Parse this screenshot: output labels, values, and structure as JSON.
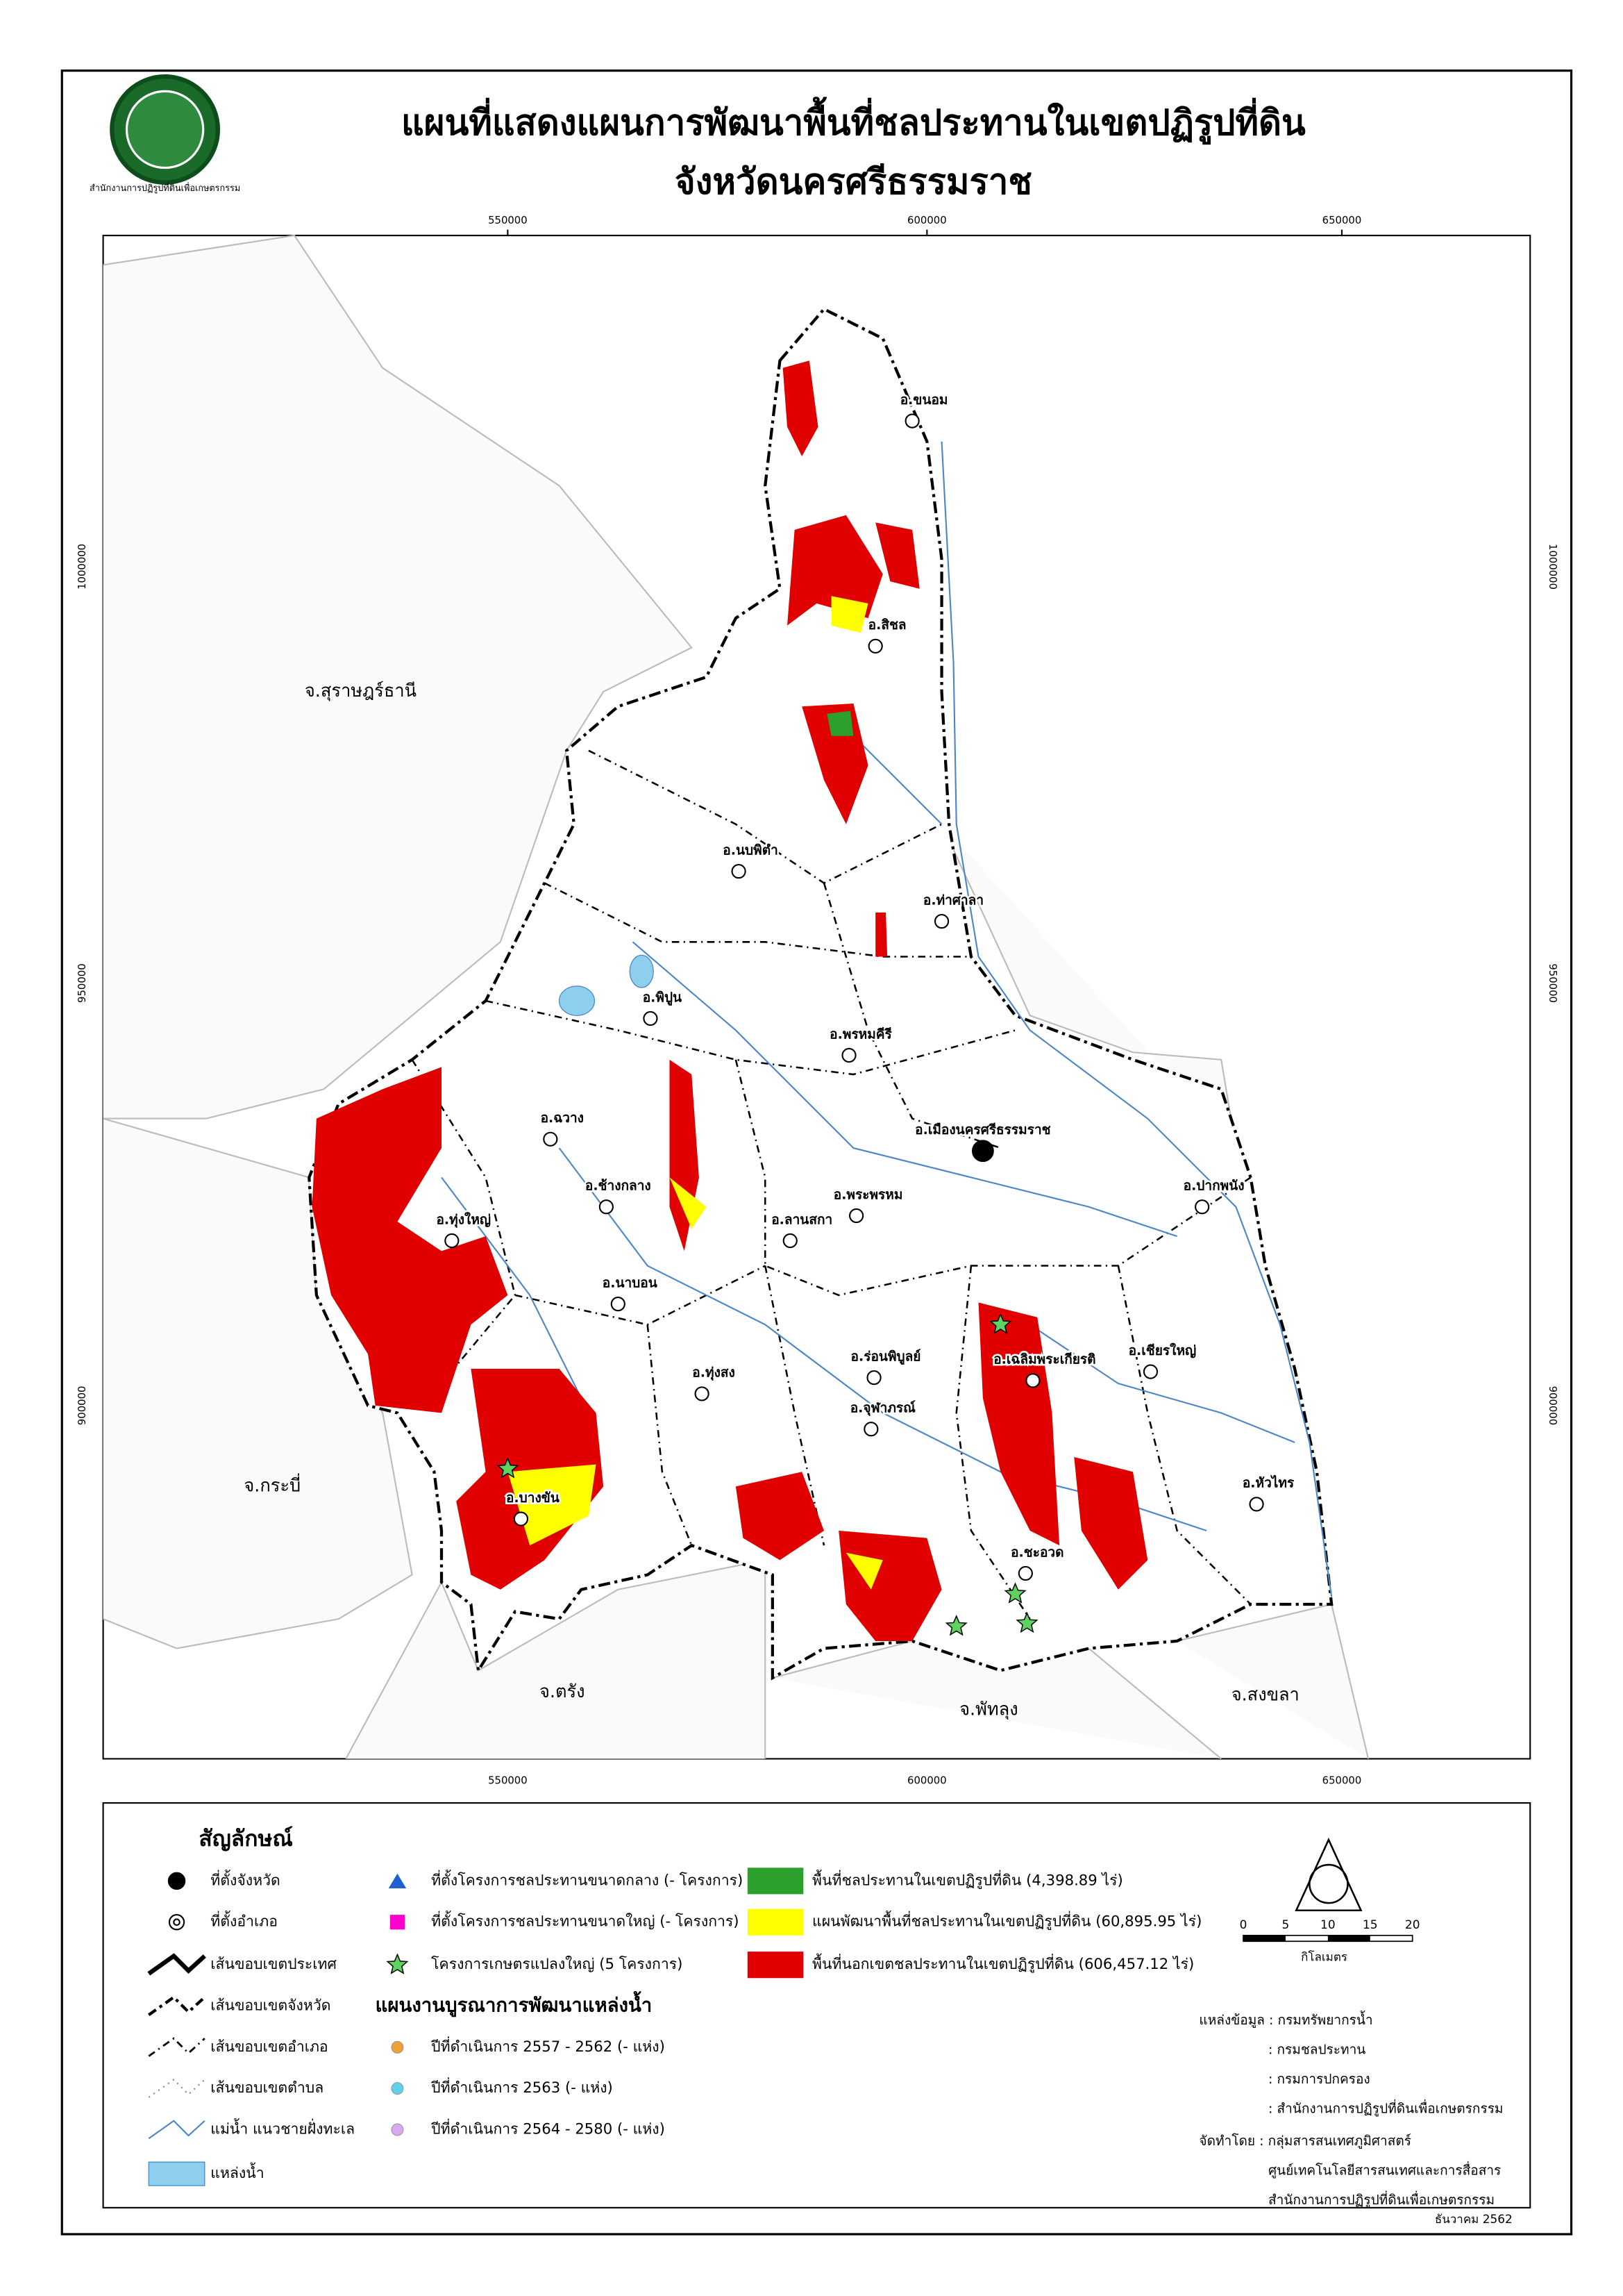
{
  "header": {
    "title": "แผนที่แสดงแผนการพัฒนาพื้นที่ชลประทานในเขตปฏิรูปที่ดิน",
    "subtitle": "จังหวัดนครศรีธรรมราช",
    "logo_text": "สำนักงานการปฏิรูปที่ดินเพื่อเกษตรกรรม"
  },
  "map": {
    "x_coordinates": [
      550000,
      600000,
      650000
    ],
    "y_coordinates": [
      1000000,
      950000,
      900000
    ],
    "provinces": [
      "จ.สุราษฎร์ธานี",
      "จ.กระบี่",
      "จ.ตรัง",
      "จ.พัทลุง",
      "จ.สงขลา"
    ],
    "districts": [
      "อ.ขนอม",
      "อ.สิชล",
      "อ.นบพิตำ",
      "อ.ท่าศาลา",
      "อ.พิปูน",
      "อ.พรหมคีรี",
      "อ.เมืองนครศรีธรรมราช",
      "อ.ฉวาง",
      "อ.ปากพนัง",
      "อ.ช้างกลาง",
      "อ.พระพรหม",
      "อ.ลานสกา",
      "อ.ทุ่งใหญ่",
      "อ.นาบอน",
      "อ.ร่อนพิบูลย์",
      "อ.เฉลิมพระเกียรติ",
      "อ.เชียรใหญ่",
      "อ.ทุ่งสง",
      "อ.จุฬาภรณ์",
      "อ.หัวไทร",
      "อ.บางขัน",
      "อ.ชะอวด"
    ]
  },
  "legend": {
    "title": "สัญลักษณ์",
    "symbols": [
      "ที่ตั้งจังหวัด",
      "ที่ตั้งอำเภอ",
      "เส้นขอบเขตประเทศ",
      "เส้นขอบเขตจังหวัด",
      "เส้นขอบเขตอำเภอ",
      "เส้นขอบเขตตำบล",
      "แม่น้ำ แนวชายฝั่งทะเล",
      "แหล่งน้ำ"
    ],
    "projects": [
      "ที่ตั้งโครงการชลประทานขนาดกลาง (- โครงการ)",
      "ที่ตั้งโครงการชลประทานขนาดใหญ่ (- โครงการ)",
      "โครงการเกษตรแปลงใหญ่ (5 โครงการ)"
    ],
    "integration_title": "แผนงานบูรณาการพัฒนาแหล่งน้ำ",
    "integration": [
      "ปีที่ดำเนินการ 2557 - 2562 (- แห่ง)",
      "ปีที่ดำเนินการ 2563 (- แห่ง)",
      "ปีที่ดำเนินการ 2564 - 2580 (- แห่ง)"
    ],
    "areas": [
      "พื้นที่ชลประทานในเขตปฏิรูปที่ดิน (4,398.89 ไร่)",
      "แผนพัฒนาพื้นที่ชลประทานในเขตปฏิรูปที่ดิน (60,895.95 ไร่)",
      "พื้นที่นอกเขตชลประทานในเขตปฏิรูปที่ดิน (606,457.12 ไร่)"
    ],
    "scale_ticks": [
      0,
      5,
      10,
      15,
      20
    ],
    "scale_unit": "กิโลเมตร"
  },
  "sources": [
    "แหล่งข้อมูล : กรมทรัพยากรน้ำ",
    ": กรมชลประทาน",
    ": กรมการปกครอง",
    ": สำนักงานการปฏิรูปที่ดินเพื่อเกษตรกรรม",
    "จัดทำโดย : กลุ่มสารสนเทศภูมิศาสตร์",
    "ศูนย์เทคโนโลยีสารสนเทศและการสื่อสาร",
    "สำนักงานการปฏิรูปที่ดินเพื่อเกษตรกรรม"
  ],
  "date": "ธันวาคม 2562"
}
